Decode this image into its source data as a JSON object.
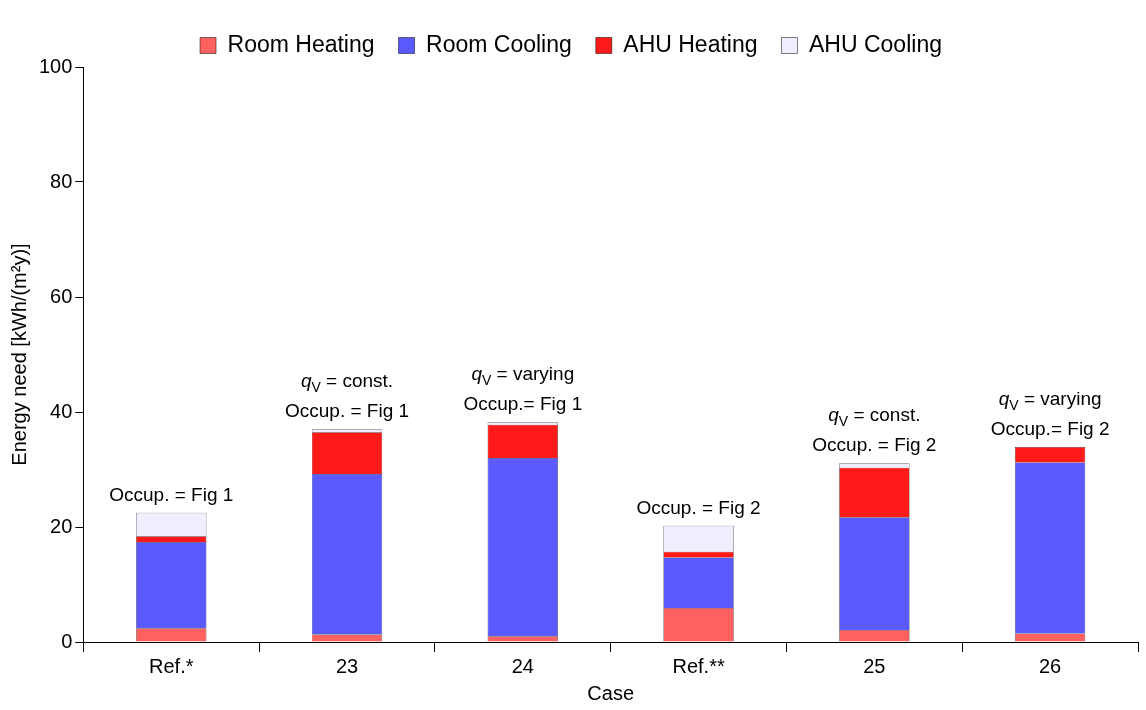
{
  "chart_data": {
    "type": "bar",
    "stacked": true,
    "xlabel": "Case",
    "ylabel": "Energy need [kWh/(m²y)]",
    "categories": [
      "Ref.*",
      "23",
      "24",
      "Ref.**",
      "25",
      "26"
    ],
    "series": [
      {
        "name": "Room Heating",
        "color": "#ff6060",
        "values": [
          2.4,
          1.3,
          1.0,
          5.9,
          2.1,
          1.5
        ]
      },
      {
        "name": "Room Cooling",
        "color": "#5a5aff",
        "values": [
          15.0,
          27.9,
          31.0,
          8.8,
          19.6,
          29.7
        ]
      },
      {
        "name": "AHU Heating",
        "color": "#ff1a1a",
        "values": [
          1.0,
          7.3,
          5.8,
          1.0,
          8.6,
          2.7
        ]
      },
      {
        "name": "AHU Cooling",
        "color": "#eeeeff",
        "values": [
          4.1,
          0.5,
          0.4,
          4.5,
          0.8,
          0
        ]
      }
    ],
    "ylim": [
      0,
      100
    ],
    "yticks": [
      0,
      20,
      40,
      60,
      80,
      100
    ],
    "grid": false,
    "legend": "top",
    "annotations": [
      {
        "text": "Occup. = Fig 1",
        "x": "Ref.*",
        "y": 22.5
      },
      {
        "text": "q$_{V}$ = const.\nOccup. = Fig 1",
        "x": "23",
        "y": 37.0
      },
      {
        "text": "q$_{V}$ = varying\nOccup.= Fig 1",
        "x": "24",
        "y": 38.2
      },
      {
        "text": "Occup. = Fig 2",
        "x": "Ref.**",
        "y": 20.2
      },
      {
        "text": "q$_{V}$ = const.\nOccup. = Fig 2",
        "x": "25",
        "y": 31.1
      },
      {
        "text": "q$_{V}$ = varying\nOccup.= Fig 2",
        "x": "26",
        "y": 33.9
      }
    ]
  }
}
